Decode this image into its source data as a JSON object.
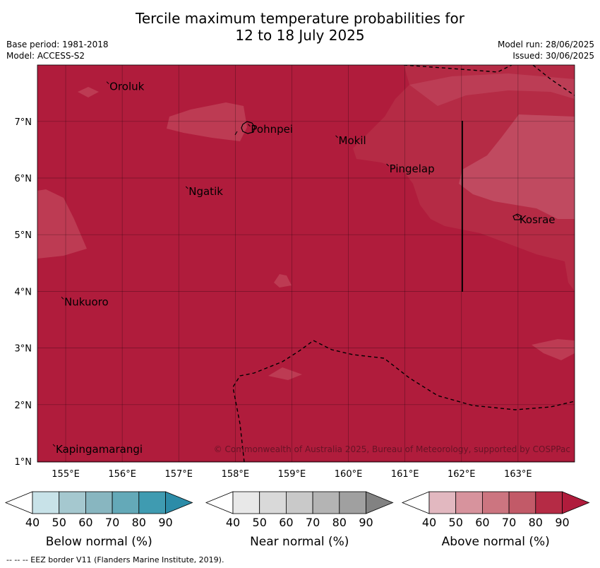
{
  "title_line1": "Tercile maximum temperature probabilities for",
  "title_line2": "12 to 18 July 2025",
  "meta_left": {
    "base_period": "Base period: 1981-2018",
    "model": "Model: ACCESS-S2"
  },
  "meta_right": {
    "model_run": "Model run: 28/06/2025",
    "issued": "Issued: 30/06/2025"
  },
  "copyright": "© Commonwealth of Australia 2025, Bureau of Meteorology, supported by COSPPac",
  "lon_ticks": [
    "155°E",
    "156°E",
    "157°E",
    "158°E",
    "159°E",
    "160°E",
    "161°E",
    "162°E",
    "163°E"
  ],
  "lat_ticks": [
    "1°N",
    "2°N",
    "3°N",
    "4°N",
    "5°N",
    "6°N",
    "7°N"
  ],
  "places": [
    {
      "name": "Oroluk",
      "lon": 155.75,
      "lat": 7.65
    },
    {
      "name": "Pohnpei",
      "lon": 158.25,
      "lat": 6.9
    },
    {
      "name": "Mokil",
      "lon": 159.8,
      "lat": 6.7
    },
    {
      "name": "Pingelap",
      "lon": 160.7,
      "lat": 6.2
    },
    {
      "name": "Ngatik",
      "lon": 157.15,
      "lat": 5.8
    },
    {
      "name": "Kosrae",
      "lon": 163.0,
      "lat": 5.3
    },
    {
      "name": "Nukuoro",
      "lon": 154.95,
      "lat": 3.85
    },
    {
      "name": "Kapingamarangi",
      "lon": 154.8,
      "lat": 1.25
    }
  ],
  "legends": [
    {
      "name": "Below normal (%)",
      "colors": [
        "#c8e2e8",
        "#a5c8cf",
        "#88b6c0",
        "#64a9b8",
        "#3f9bb1",
        "#2c8ca8"
      ]
    },
    {
      "name": "Near normal (%)",
      "colors": [
        "#e8e8e8",
        "#d9d9d9",
        "#c9c9c9",
        "#b4b4b4",
        "#a0a0a0",
        "#828282"
      ]
    },
    {
      "name": "Above normal (%)",
      "colors": [
        "#e2b8c0",
        "#d7939d",
        "#cc7580",
        "#c25a68",
        "#b52b45",
        "#b01c3c"
      ]
    }
  ],
  "legend_ticks": [
    "40",
    "50",
    "60",
    "70",
    "80",
    "90"
  ],
  "footer": "--  --  -- EEZ border V11 (Flanders Marine Institute, 2019)."
}
